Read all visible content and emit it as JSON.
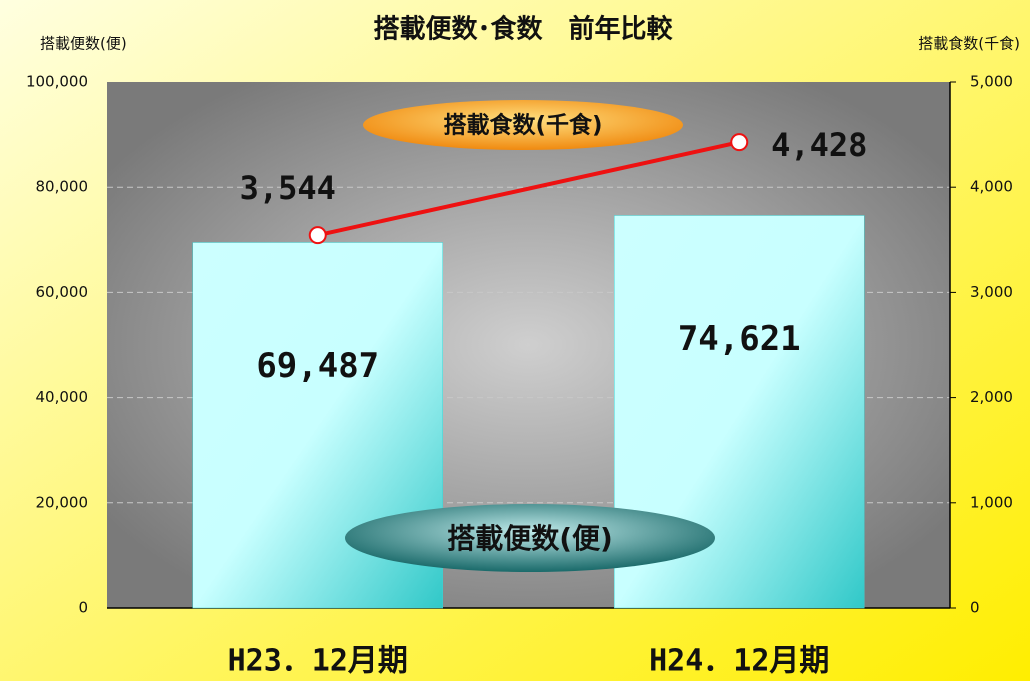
{
  "chart_data": {
    "type": "bar_line",
    "title": "搭載便数･食数　前年比較",
    "y_label": "搭載便数(便)",
    "y2_label": "搭載食数(千食)",
    "categories": [
      "H23．12月期",
      "H24．12月期"
    ],
    "series": [
      {
        "name": "搭載便数(便)",
        "type": "bar",
        "color": "#40d0d0",
        "values": [
          69487,
          74621
        ],
        "value_labels": [
          "69,487",
          "74,621"
        ]
      },
      {
        "name": "搭載食数(千食)",
        "type": "line",
        "axis": "y2",
        "color": "#ee1111",
        "values": [
          3544,
          4428
        ],
        "value_labels": [
          "3,544",
          "4,428"
        ]
      }
    ],
    "ylim": [
      0,
      100000
    ],
    "yticks": [
      0,
      {
        "value": 20000,
        "label": "20,000"
      },
      {
        "value": 40000,
        "label": "40,000"
      },
      {
        "value": 60000,
        "label": "60,000"
      },
      {
        "value": 80000,
        "label": "80,000"
      },
      {
        "value": 100000,
        "label": "100,000"
      }
    ],
    "y2lim": [
      0,
      5000
    ],
    "y2ticks": [
      0,
      {
        "value": 1000,
        "label": "1,000"
      },
      {
        "value": 2000,
        "label": "2,000"
      },
      {
        "value": 3000,
        "label": "3,000"
      },
      {
        "value": 4000,
        "label": "4,000"
      },
      {
        "value": 5000,
        "label": "5,000"
      }
    ],
    "grid": true
  }
}
